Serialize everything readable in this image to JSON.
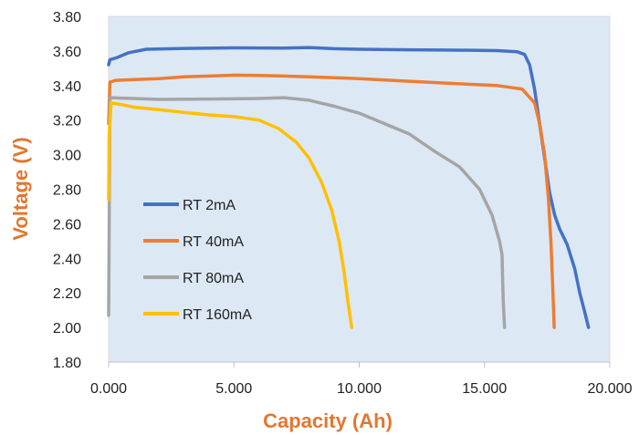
{
  "chart_data": {
    "type": "line",
    "title": "",
    "xlabel": "Capacity (Ah)",
    "ylabel": "Voltage (V)",
    "xlim": [
      0,
      20
    ],
    "ylim": [
      1.8,
      3.8
    ],
    "x_ticks": [
      0,
      5,
      10,
      15,
      20
    ],
    "x_tick_labels": [
      "0.000",
      "5.000",
      "10.000",
      "15.000",
      "20.000"
    ],
    "y_ticks": [
      1.8,
      2.0,
      2.2,
      2.4,
      2.6,
      2.8,
      3.0,
      3.2,
      3.4,
      3.6,
      3.8
    ],
    "y_tick_labels": [
      "1.80",
      "2.00",
      "2.20",
      "2.40",
      "2.60",
      "2.80",
      "3.00",
      "3.20",
      "3.40",
      "3.60",
      "3.80"
    ],
    "grid": false,
    "legend_position": "left-center",
    "plot_background": "#dde8f5",
    "label_color": "#e0782f",
    "series": [
      {
        "name": "RT 2mA",
        "color": "#4472c4",
        "points": [
          [
            0.0,
            3.52
          ],
          [
            0.05,
            3.55
          ],
          [
            0.3,
            3.56
          ],
          [
            0.8,
            3.59
          ],
          [
            1.5,
            3.61
          ],
          [
            3,
            3.615
          ],
          [
            5,
            3.618
          ],
          [
            7,
            3.617
          ],
          [
            8,
            3.62
          ],
          [
            9,
            3.613
          ],
          [
            10,
            3.61
          ],
          [
            12,
            3.607
          ],
          [
            14,
            3.605
          ],
          [
            15.5,
            3.602
          ],
          [
            16.3,
            3.596
          ],
          [
            16.6,
            3.58
          ],
          [
            16.8,
            3.52
          ],
          [
            17.0,
            3.38
          ],
          [
            17.2,
            3.18
          ],
          [
            17.4,
            2.98
          ],
          [
            17.6,
            2.78
          ],
          [
            17.8,
            2.65
          ],
          [
            18.0,
            2.57
          ],
          [
            18.3,
            2.48
          ],
          [
            18.6,
            2.34
          ],
          [
            18.8,
            2.2
          ],
          [
            19.0,
            2.09
          ],
          [
            19.15,
            2.0
          ]
        ]
      },
      {
        "name": "RT 40mA",
        "color": "#ed7d31",
        "points": [
          [
            0.0,
            3.18
          ],
          [
            0.05,
            3.42
          ],
          [
            0.3,
            3.43
          ],
          [
            1,
            3.435
          ],
          [
            2,
            3.44
          ],
          [
            3,
            3.45
          ],
          [
            4,
            3.455
          ],
          [
            5,
            3.46
          ],
          [
            6,
            3.458
          ],
          [
            7,
            3.455
          ],
          [
            8,
            3.45
          ],
          [
            10,
            3.44
          ],
          [
            12,
            3.425
          ],
          [
            14,
            3.41
          ],
          [
            15.5,
            3.4
          ],
          [
            16.5,
            3.38
          ],
          [
            17.0,
            3.3
          ],
          [
            17.2,
            3.18
          ],
          [
            17.4,
            3.0
          ],
          [
            17.55,
            2.75
          ],
          [
            17.65,
            2.5
          ],
          [
            17.72,
            2.25
          ],
          [
            17.78,
            2.0
          ]
        ]
      },
      {
        "name": "RT 80mA",
        "color": "#a5a5a5",
        "points": [
          [
            0.0,
            2.07
          ],
          [
            0.02,
            2.5
          ],
          [
            0.05,
            3.33
          ],
          [
            1,
            3.325
          ],
          [
            2,
            3.32
          ],
          [
            4,
            3.322
          ],
          [
            6,
            3.325
          ],
          [
            7,
            3.33
          ],
          [
            8,
            3.315
          ],
          [
            9,
            3.28
          ],
          [
            10,
            3.24
          ],
          [
            11,
            3.18
          ],
          [
            12,
            3.12
          ],
          [
            13,
            3.02
          ],
          [
            14,
            2.93
          ],
          [
            14.8,
            2.8
          ],
          [
            15.3,
            2.65
          ],
          [
            15.6,
            2.5
          ],
          [
            15.7,
            2.42
          ],
          [
            15.72,
            2.3
          ],
          [
            15.75,
            2.15
          ],
          [
            15.8,
            2.0
          ]
        ]
      },
      {
        "name": "RT 160mA",
        "color": "#ffc000",
        "points": [
          [
            0.0,
            2.74
          ],
          [
            0.02,
            3.1
          ],
          [
            0.1,
            3.3
          ],
          [
            0.5,
            3.29
          ],
          [
            1,
            3.275
          ],
          [
            2,
            3.26
          ],
          [
            3,
            3.245
          ],
          [
            4,
            3.23
          ],
          [
            5,
            3.22
          ],
          [
            6,
            3.2
          ],
          [
            6.8,
            3.15
          ],
          [
            7.5,
            3.07
          ],
          [
            8.0,
            2.98
          ],
          [
            8.5,
            2.84
          ],
          [
            8.9,
            2.68
          ],
          [
            9.2,
            2.5
          ],
          [
            9.4,
            2.32
          ],
          [
            9.55,
            2.15
          ],
          [
            9.7,
            2.0
          ]
        ]
      }
    ]
  }
}
